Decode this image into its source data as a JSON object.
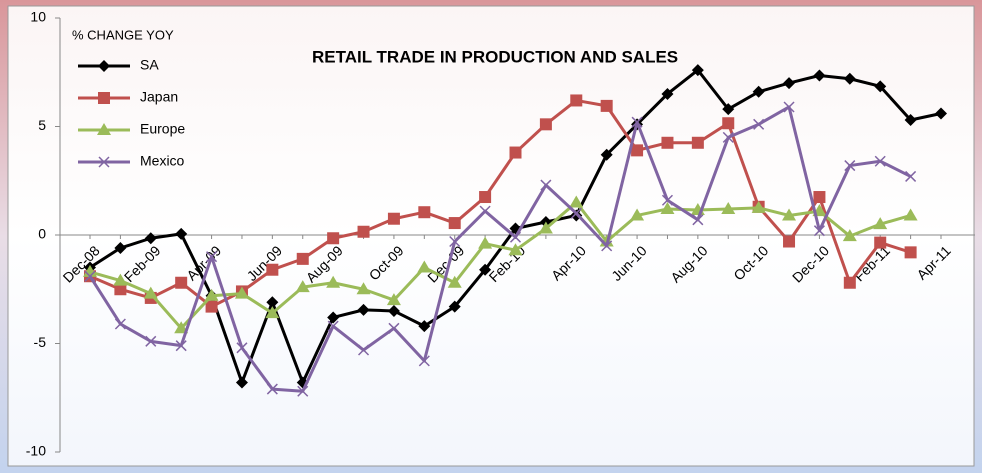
{
  "chart_data": {
    "type": "line",
    "title": "RETAIL TRADE IN PRODUCTION AND SALES",
    "y_label": "% CHANGE YOY",
    "categories": [
      "Dec-08",
      null,
      "Feb-09",
      null,
      "Apr-09",
      null,
      "Jun-09",
      null,
      "Aug-09",
      null,
      "Oct-09",
      null,
      "Dec-09",
      null,
      "Feb-10",
      null,
      "Apr-10",
      null,
      "Jun-10",
      null,
      "Aug-10",
      null,
      "Oct-10",
      null,
      "Dec-10",
      null,
      "Feb-11",
      null,
      "Apr-11"
    ],
    "series": [
      {
        "name": "SA",
        "color": "#000000",
        "marker": "diamond",
        "values": [
          -1.5,
          -0.6,
          -0.15,
          0.05,
          -2.8,
          -6.8,
          -3.1,
          -6.8,
          -3.8,
          -3.45,
          -3.5,
          -4.2,
          -3.3,
          -1.6,
          0.3,
          0.6,
          0.9,
          3.7,
          5.1,
          6.5,
          7.6,
          5.8,
          6.6,
          7.0,
          7.35,
          7.2,
          6.85,
          5.3,
          5.6
        ]
      },
      {
        "name": "Japan",
        "color": "#c0504d",
        "marker": "square",
        "values": [
          -1.9,
          -2.5,
          -2.9,
          -2.2,
          -3.3,
          -2.6,
          -1.6,
          -1.1,
          -0.15,
          0.15,
          0.75,
          1.05,
          0.55,
          1.75,
          3.8,
          5.1,
          6.2,
          5.95,
          3.9,
          4.25,
          4.25,
          5.15,
          1.3,
          -0.3,
          1.75,
          -2.2,
          -0.35,
          -0.8,
          null
        ]
      },
      {
        "name": "Europe",
        "color": "#9bbb59",
        "marker": "triangle",
        "values": [
          -1.7,
          -2.1,
          -2.7,
          -4.3,
          -2.8,
          -2.7,
          -3.6,
          -2.4,
          -2.2,
          -2.5,
          -3.0,
          -1.5,
          -2.2,
          -0.4,
          -0.7,
          0.3,
          1.5,
          -0.3,
          0.9,
          1.2,
          1.15,
          1.2,
          1.25,
          0.9,
          1.1,
          -0.05,
          0.5,
          0.9,
          null
        ]
      },
      {
        "name": "Mexico",
        "color": "#8064a2",
        "marker": "x",
        "values": [
          -1.9,
          -4.1,
          -4.9,
          -5.1,
          -1.0,
          -5.2,
          -7.1,
          -7.2,
          -4.2,
          -5.3,
          -4.3,
          -5.8,
          -0.3,
          1.1,
          -0.1,
          2.3,
          1.0,
          -0.5,
          5.2,
          1.6,
          0.7,
          4.5,
          5.1,
          5.9,
          0.2,
          3.2,
          3.4,
          2.7,
          null
        ]
      }
    ],
    "ylim": [
      -10,
      10
    ],
    "yticks": [
      -10,
      -5,
      0,
      5,
      10
    ],
    "legend": "top-left"
  }
}
